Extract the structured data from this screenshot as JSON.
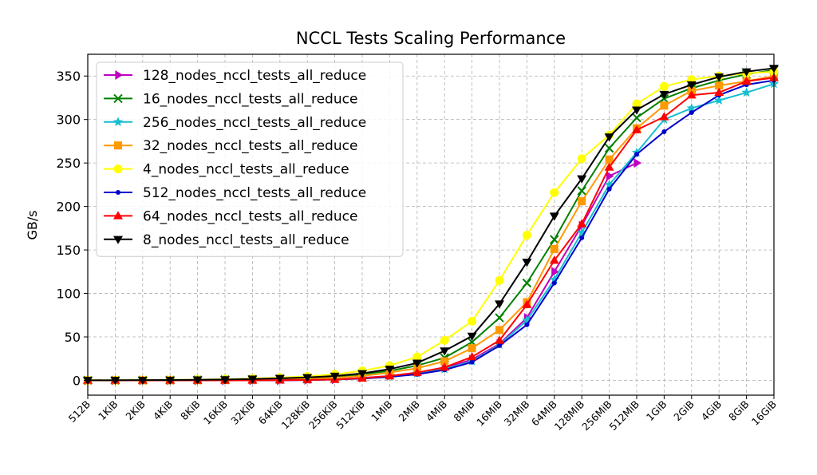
{
  "chart_data": {
    "type": "line",
    "title": "NCCL Tests Scaling Performance",
    "xlabel": "",
    "ylabel": "GB/s",
    "categories": [
      "512B",
      "1KiB",
      "2KiB",
      "4KiB",
      "8KiB",
      "16KiB",
      "32KiB",
      "64KiB",
      "128KiB",
      "256KiB",
      "512KiB",
      "1MiB",
      "2MiB",
      "4MiB",
      "8MiB",
      "16MiB",
      "32MiB",
      "64MiB",
      "128MiB",
      "256MiB",
      "512MiB",
      "1GiB",
      "2GiB",
      "4GiB",
      "8GiB",
      "16GiB"
    ],
    "ylim": [
      -17,
      375
    ],
    "yticks": [
      0,
      50,
      100,
      150,
      200,
      250,
      300,
      350
    ],
    "grid": true,
    "legend_placement": "upper-left",
    "series": [
      {
        "name": "128_nodes_nccl_tests_all_reduce",
        "color": "#bf00bf",
        "marker": "triangle-right",
        "values": [
          0,
          0,
          0,
          0,
          0,
          0,
          0,
          0,
          0.5,
          1,
          3,
          5,
          9,
          14,
          24,
          42,
          72,
          125,
          178,
          235,
          250,
          null,
          null,
          null,
          null,
          null
        ]
      },
      {
        "name": "16_nodes_nccl_tests_all_reduce",
        "color": "#008000",
        "marker": "x",
        "values": [
          0.1,
          0.1,
          0.2,
          0.3,
          0.5,
          0.8,
          1.2,
          1.8,
          2.6,
          4,
          7,
          11,
          17,
          26,
          44,
          72,
          112,
          162,
          218,
          267,
          302,
          324,
          336,
          345,
          352,
          357
        ]
      },
      {
        "name": "256_nodes_nccl_tests_all_reduce",
        "color": "#17becf",
        "marker": "star",
        "values": [
          0,
          0,
          0,
          0,
          0,
          0,
          0,
          0.3,
          0.5,
          1,
          2.5,
          4.5,
          8,
          13,
          22,
          41,
          69,
          116,
          170,
          225,
          262,
          300,
          313,
          322,
          331,
          341
        ]
      },
      {
        "name": "32_nodes_nccl_tests_all_reduce",
        "color": "#ff9900",
        "marker": "square",
        "values": [
          0,
          0,
          0,
          0.1,
          0.2,
          0.4,
          0.7,
          1.1,
          1.7,
          3,
          5,
          9,
          14,
          22,
          37,
          58,
          90,
          151,
          206,
          254,
          290,
          316,
          333,
          339,
          344,
          350
        ]
      },
      {
        "name": "4_nodes_nccl_tests_all_reduce",
        "color": "#ffff00",
        "marker": "circle",
        "values": [
          0.2,
          0.3,
          0.4,
          0.6,
          0.9,
          1.4,
          2.1,
          3.2,
          4.6,
          7,
          11,
          17,
          27,
          46,
          68,
          115,
          167,
          216,
          255,
          282,
          318,
          338,
          346,
          350,
          353,
          355
        ]
      },
      {
        "name": "512_nodes_nccl_tests_all_reduce",
        "color": "#0000cc",
        "marker": "point",
        "values": [
          0,
          0,
          0,
          0,
          0,
          0,
          0,
          0.2,
          0.4,
          1,
          2,
          4,
          7,
          12,
          21,
          40,
          64,
          112,
          164,
          220,
          260,
          286,
          308,
          328,
          340,
          345
        ]
      },
      {
        "name": "64_nodes_nccl_tests_all_reduce",
        "color": "#ff0000",
        "marker": "triangle-up",
        "values": [
          0,
          0,
          0,
          0,
          0,
          0,
          0,
          0.2,
          0.5,
          1,
          2.5,
          5,
          9,
          15,
          27,
          46,
          87,
          138,
          180,
          245,
          288,
          303,
          328,
          331,
          344,
          348
        ]
      },
      {
        "name": "8_nodes_nccl_tests_all_reduce",
        "color": "#000000",
        "marker": "triangle-down",
        "values": [
          0.1,
          0.2,
          0.3,
          0.4,
          0.7,
          1,
          1.6,
          2.4,
          3.4,
          5,
          8,
          13,
          20,
          34,
          51,
          88,
          136,
          189,
          232,
          280,
          311,
          329,
          340,
          349,
          355,
          359
        ]
      }
    ]
  }
}
